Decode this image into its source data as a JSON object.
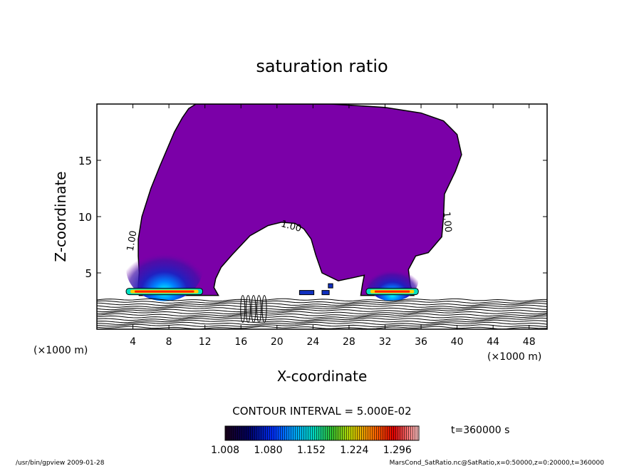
{
  "chart_data": {
    "type": "heatmap",
    "title": "saturation ratio",
    "xlabel": "X-coordinate",
    "ylabel": "Z-coordinate",
    "x_unit_left": "(×1000 m)",
    "x_unit_right": "(×1000 m)",
    "xlim": [
      0,
      50
    ],
    "ylim": [
      0,
      20
    ],
    "x_ticks": [
      4,
      8,
      12,
      16,
      20,
      24,
      28,
      32,
      36,
      40,
      44,
      48
    ],
    "y_ticks": [
      5,
      10,
      15
    ],
    "contour_labels": [
      {
        "text": "1.00",
        "x": 4.2,
        "y": 7.8,
        "rotate": -80
      },
      {
        "text": "1.00",
        "x": 21.5,
        "y": 8.9,
        "rotate": 15
      },
      {
        "text": "1.00",
        "x": 38.6,
        "y": 9.5,
        "rotate": 85
      }
    ],
    "contour_interval": "CONTOUR INTERVAL = 5.000E-02",
    "colorbar": {
      "min": 1.008,
      "max": 1.332,
      "tick_labels": [
        "1.008",
        "1.080",
        "1.152",
        "1.224",
        "1.296"
      ],
      "tick_values": [
        1.008,
        1.08,
        1.152,
        1.224,
        1.296
      ]
    },
    "cloud_region": {
      "fill": "#7b00a8",
      "outline": [
        [
          4.7,
          3.0
        ],
        [
          4.6,
          3.8
        ],
        [
          4.7,
          5.0
        ],
        [
          4.6,
          6.5
        ],
        [
          4.6,
          8.0
        ],
        [
          5.0,
          10.0
        ],
        [
          6.0,
          12.5
        ],
        [
          7.0,
          14.5
        ],
        [
          7.8,
          16.0
        ],
        [
          8.6,
          17.5
        ],
        [
          9.5,
          18.8
        ],
        [
          10.2,
          19.6
        ],
        [
          11.0,
          20
        ],
        [
          26,
          20
        ],
        [
          32,
          19.7
        ],
        [
          36,
          19.2
        ],
        [
          38.5,
          18.5
        ],
        [
          40,
          17.3
        ],
        [
          40.5,
          15.5
        ],
        [
          39.8,
          14.0
        ],
        [
          38.6,
          12.0
        ],
        [
          38.5,
          10.0
        ],
        [
          38.3,
          8.2
        ],
        [
          36.8,
          6.8
        ],
        [
          35.4,
          6.5
        ],
        [
          34.6,
          5.3
        ],
        [
          34.8,
          3.9
        ],
        [
          35.2,
          3.0
        ],
        [
          29.3,
          3.0
        ],
        [
          29.5,
          4.0
        ],
        [
          29.7,
          4.8
        ],
        [
          28.6,
          4.6
        ],
        [
          26.8,
          4.3
        ],
        [
          25.0,
          5.0
        ],
        [
          24.3,
          6.6
        ],
        [
          23.8,
          8.0
        ],
        [
          23.0,
          8.9
        ],
        [
          22.0,
          9.4
        ],
        [
          20.5,
          9.5
        ],
        [
          19.0,
          9.2
        ],
        [
          17.0,
          8.3
        ],
        [
          15.0,
          6.6
        ],
        [
          13.8,
          5.5
        ],
        [
          13.2,
          4.5
        ],
        [
          13.0,
          3.7
        ],
        [
          13.5,
          3.0
        ],
        [
          4.7,
          3.0
        ]
      ]
    },
    "clusters": [
      {
        "name": "left",
        "x": 7.5,
        "y_top": 8.5,
        "width": 8.5
      },
      {
        "name": "right",
        "x": 32.8,
        "y_top": 6.5,
        "width": 5.8
      }
    ],
    "footer_left": "/usr/bin/gpview   2009-01-28",
    "footer_right": "MarsCond_SatRatio.nc@SatRatio,x=0:50000,z=0:20000,t=360000",
    "time_label": "t=360000  s"
  }
}
